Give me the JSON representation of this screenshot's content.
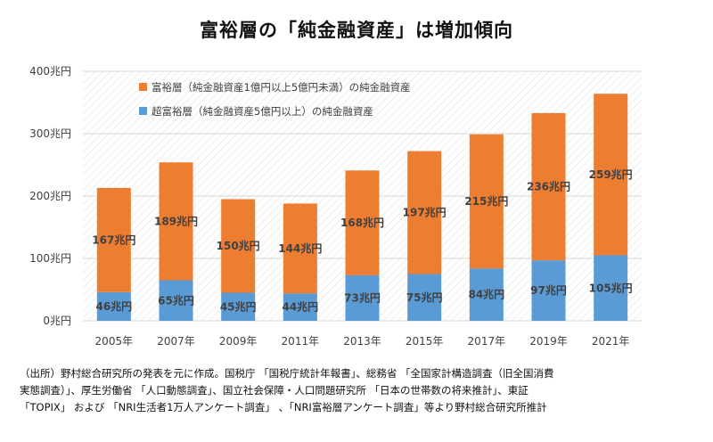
{
  "title": "富裕層の「純金融資産」は増加傾向",
  "source_note": "（出所）野村総合研究所の発表を元に作成。国税庁 「国税庁統計年報書」、総務省 「全国家計構造調査（旧全国消費\n実態調査）」、厚生労働省 「人口動態調査」、国立社会保障・人口問題研究所 「日本の世帯数の将来推計」、東証\n「TOPIX」 および 「NRI生活者1万人アンケート調査」 、「NRI富裕層アンケート調査」等より野村総合研究所推計",
  "colors": {
    "orange": "#ED7D31",
    "blue": "#5B9BD5",
    "grid": "#d9d9d9",
    "text": "#404040"
  },
  "chart_data": {
    "type": "bar",
    "stacked": true,
    "title": "",
    "xlabel": "",
    "ylabel": "",
    "ylim": [
      0,
      400
    ],
    "yticks": [
      0,
      100,
      200,
      300,
      400
    ],
    "yticklabels": [
      "0兆円",
      "100兆円",
      "200兆円",
      "300兆円",
      "400兆円"
    ],
    "unit": "兆円",
    "grid": true,
    "legend_position": "top-left",
    "categories": [
      "2005年",
      "2007年",
      "2009年",
      "2011年",
      "2013年",
      "2015年",
      "2017年",
      "2019年",
      "2021年"
    ],
    "series": [
      {
        "name": "超富裕層（純金融資産5億円以上）の純金融資産",
        "color": "#5B9BD5",
        "values": [
          46,
          65,
          45,
          44,
          73,
          75,
          84,
          97,
          105
        ]
      },
      {
        "name": "富裕層（純金融資産1億円以上5億円未満）の純金融資産",
        "color": "#ED7D31",
        "values": [
          167,
          189,
          150,
          144,
          168,
          197,
          215,
          236,
          259
        ]
      }
    ],
    "legend_order": [
      1,
      0
    ]
  }
}
